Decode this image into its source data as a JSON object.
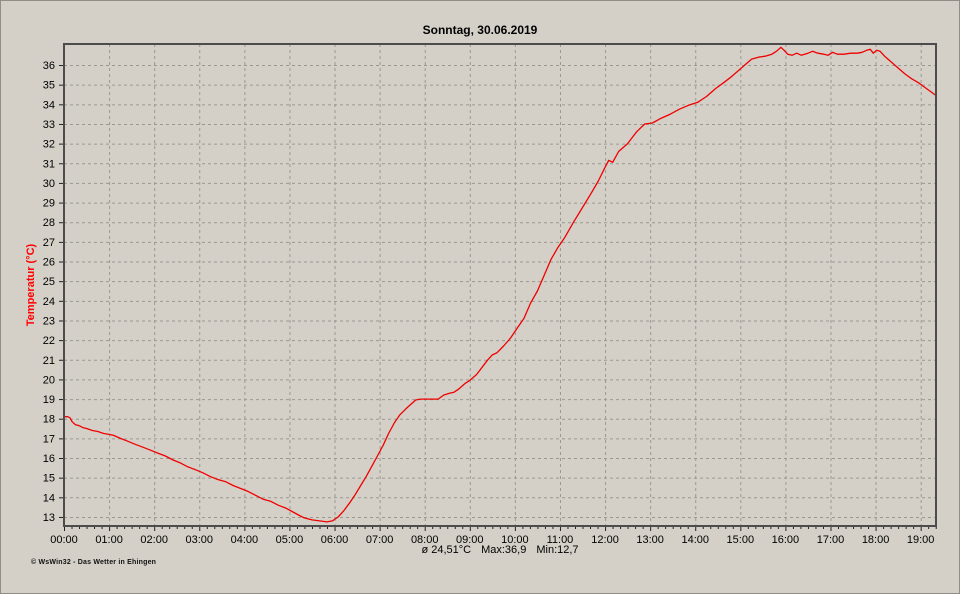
{
  "window": {
    "background": "#d4d0c8"
  },
  "footer": {
    "stats": {
      "avg": "ø 24,51°C",
      "max": "Max:36,9",
      "min": "Min:12,7"
    },
    "copyright": "© WsWin32 - Das Wetter in Ehingen"
  },
  "chart_data": {
    "type": "line",
    "title": "Sonntag, 30.06.2019",
    "xlabel": "",
    "ylabel": "Temperatur (°C)",
    "xlim": [
      0,
      19.34
    ],
    "ylim": [
      12.54,
      37.07
    ],
    "grid": true,
    "grid_style": "dashed",
    "legend": "none",
    "x_unit": "hours",
    "x_minor_tick_minutes": 10,
    "x_ticks": [
      {
        "value": 0,
        "label": "00:00"
      },
      {
        "value": 1,
        "label": "01:00"
      },
      {
        "value": 2,
        "label": "02:00"
      },
      {
        "value": 3,
        "label": "03:00"
      },
      {
        "value": 4,
        "label": "04:00"
      },
      {
        "value": 5,
        "label": "05:00"
      },
      {
        "value": 6,
        "label": "06:00"
      },
      {
        "value": 7,
        "label": "07:00"
      },
      {
        "value": 8,
        "label": "08:00"
      },
      {
        "value": 9,
        "label": "09:00"
      },
      {
        "value": 10,
        "label": "10:00"
      },
      {
        "value": 11,
        "label": "11:00"
      },
      {
        "value": 12,
        "label": "12:00"
      },
      {
        "value": 13,
        "label": "13:00"
      },
      {
        "value": 14,
        "label": "14:00"
      },
      {
        "value": 15,
        "label": "15:00"
      },
      {
        "value": 16,
        "label": "16:00"
      },
      {
        "value": 17,
        "label": "17:00"
      },
      {
        "value": 18,
        "label": "18:00"
      },
      {
        "value": 19,
        "label": "19:00"
      }
    ],
    "y_ticks": [
      13,
      14,
      15,
      16,
      17,
      18,
      19,
      20,
      21,
      22,
      23,
      24,
      25,
      26,
      27,
      28,
      29,
      30,
      31,
      32,
      33,
      34,
      35,
      36
    ],
    "stats": {
      "mean_c": 24.51,
      "max_c": 36.9,
      "min_c": 12.7
    },
    "colors": {
      "line": "#f00000",
      "grid": "#999990",
      "axis_title": "#ff0000",
      "border": "#4c4c4c",
      "text": "#000000"
    },
    "series": [
      {
        "name": "temperatur",
        "unit": "°C",
        "color": "#f00000",
        "points": [
          [
            0.0,
            18.1
          ],
          [
            0.08,
            18.1
          ],
          [
            0.13,
            18.05
          ],
          [
            0.18,
            17.85
          ],
          [
            0.25,
            17.7
          ],
          [
            0.33,
            17.65
          ],
          [
            0.42,
            17.55
          ],
          [
            0.5,
            17.5
          ],
          [
            0.63,
            17.4
          ],
          [
            0.75,
            17.35
          ],
          [
            0.88,
            17.25
          ],
          [
            1.0,
            17.2
          ],
          [
            1.1,
            17.15
          ],
          [
            1.25,
            17.0
          ],
          [
            1.42,
            16.85
          ],
          [
            1.58,
            16.7
          ],
          [
            1.75,
            16.55
          ],
          [
            1.92,
            16.4
          ],
          [
            2.08,
            16.25
          ],
          [
            2.25,
            16.1
          ],
          [
            2.42,
            15.9
          ],
          [
            2.58,
            15.75
          ],
          [
            2.75,
            15.55
          ],
          [
            2.92,
            15.4
          ],
          [
            3.08,
            15.25
          ],
          [
            3.25,
            15.05
          ],
          [
            3.42,
            14.9
          ],
          [
            3.58,
            14.8
          ],
          [
            3.75,
            14.6
          ],
          [
            3.92,
            14.45
          ],
          [
            4.08,
            14.3
          ],
          [
            4.25,
            14.1
          ],
          [
            4.42,
            13.9
          ],
          [
            4.58,
            13.8
          ],
          [
            4.75,
            13.6
          ],
          [
            4.92,
            13.45
          ],
          [
            5.08,
            13.25
          ],
          [
            5.2,
            13.1
          ],
          [
            5.33,
            12.95
          ],
          [
            5.5,
            12.85
          ],
          [
            5.67,
            12.8
          ],
          [
            5.83,
            12.75
          ],
          [
            5.95,
            12.8
          ],
          [
            6.08,
            13.0
          ],
          [
            6.2,
            13.3
          ],
          [
            6.33,
            13.7
          ],
          [
            6.45,
            14.1
          ],
          [
            6.58,
            14.6
          ],
          [
            6.7,
            15.05
          ],
          [
            6.83,
            15.6
          ],
          [
            6.95,
            16.1
          ],
          [
            7.08,
            16.65
          ],
          [
            7.2,
            17.25
          ],
          [
            7.33,
            17.8
          ],
          [
            7.45,
            18.2
          ],
          [
            7.58,
            18.5
          ],
          [
            7.7,
            18.75
          ],
          [
            7.8,
            18.95
          ],
          [
            7.9,
            19.0
          ],
          [
            8.1,
            19.0
          ],
          [
            8.3,
            19.0
          ],
          [
            8.42,
            19.2
          ],
          [
            8.55,
            19.3
          ],
          [
            8.65,
            19.35
          ],
          [
            8.75,
            19.5
          ],
          [
            8.9,
            19.8
          ],
          [
            9.0,
            19.95
          ],
          [
            9.15,
            20.25
          ],
          [
            9.3,
            20.7
          ],
          [
            9.4,
            21.0
          ],
          [
            9.5,
            21.25
          ],
          [
            9.6,
            21.35
          ],
          [
            9.75,
            21.7
          ],
          [
            9.9,
            22.1
          ],
          [
            10.05,
            22.6
          ],
          [
            10.2,
            23.1
          ],
          [
            10.35,
            23.9
          ],
          [
            10.5,
            24.5
          ],
          [
            10.65,
            25.3
          ],
          [
            10.8,
            26.1
          ],
          [
            10.95,
            26.7
          ],
          [
            11.1,
            27.2
          ],
          [
            11.3,
            28.0
          ],
          [
            11.5,
            28.75
          ],
          [
            11.7,
            29.5
          ],
          [
            11.85,
            30.1
          ],
          [
            12.0,
            30.8
          ],
          [
            12.08,
            31.15
          ],
          [
            12.17,
            31.05
          ],
          [
            12.3,
            31.6
          ],
          [
            12.5,
            32.0
          ],
          [
            12.7,
            32.6
          ],
          [
            12.88,
            33.0
          ],
          [
            13.05,
            33.05
          ],
          [
            13.25,
            33.3
          ],
          [
            13.45,
            33.5
          ],
          [
            13.65,
            33.75
          ],
          [
            13.85,
            33.95
          ],
          [
            14.05,
            34.1
          ],
          [
            14.25,
            34.4
          ],
          [
            14.45,
            34.8
          ],
          [
            14.6,
            35.05
          ],
          [
            14.8,
            35.4
          ],
          [
            14.95,
            35.7
          ],
          [
            15.1,
            36.0
          ],
          [
            15.25,
            36.3
          ],
          [
            15.4,
            36.4
          ],
          [
            15.55,
            36.45
          ],
          [
            15.7,
            36.55
          ],
          [
            15.8,
            36.7
          ],
          [
            15.9,
            36.9
          ],
          [
            15.97,
            36.75
          ],
          [
            16.05,
            36.55
          ],
          [
            16.15,
            36.5
          ],
          [
            16.25,
            36.6
          ],
          [
            16.35,
            36.5
          ],
          [
            16.5,
            36.6
          ],
          [
            16.6,
            36.7
          ],
          [
            16.72,
            36.6
          ],
          [
            16.85,
            36.55
          ],
          [
            16.95,
            36.5
          ],
          [
            17.05,
            36.65
          ],
          [
            17.15,
            36.55
          ],
          [
            17.3,
            36.55
          ],
          [
            17.45,
            36.6
          ],
          [
            17.6,
            36.6
          ],
          [
            17.7,
            36.65
          ],
          [
            17.8,
            36.75
          ],
          [
            17.88,
            36.8
          ],
          [
            17.95,
            36.6
          ],
          [
            18.02,
            36.75
          ],
          [
            18.1,
            36.7
          ],
          [
            18.2,
            36.45
          ],
          [
            18.35,
            36.15
          ],
          [
            18.5,
            35.85
          ],
          [
            18.65,
            35.55
          ],
          [
            18.8,
            35.3
          ],
          [
            18.95,
            35.1
          ],
          [
            19.1,
            34.85
          ],
          [
            19.25,
            34.6
          ],
          [
            19.34,
            34.45
          ]
        ]
      }
    ]
  }
}
